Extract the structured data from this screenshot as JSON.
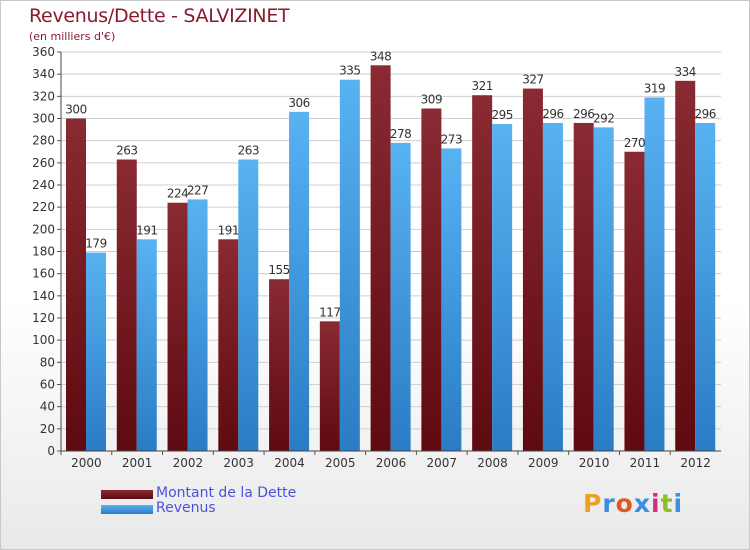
{
  "chart_data": {
    "type": "bar",
    "title": "Revenus/Dette - SALVIZINET",
    "subtitle": "(en milliers d'€)",
    "categories": [
      "2000",
      "2001",
      "2002",
      "2003",
      "2004",
      "2005",
      "2006",
      "2007",
      "2008",
      "2009",
      "2010",
      "2011",
      "2012"
    ],
    "series": [
      {
        "name": "Montant de la Dette",
        "color": "#7a1c22",
        "values": [
          300,
          263,
          224,
          191,
          155,
          117,
          348,
          309,
          321,
          327,
          296,
          270,
          334
        ]
      },
      {
        "name": "Revenus",
        "color": "#3d9ce6",
        "values": [
          179,
          191,
          227,
          263,
          306,
          335,
          278,
          273,
          295,
          296,
          292,
          319,
          296
        ]
      }
    ],
    "ylim": [
      0,
      360
    ],
    "yticks": [
      0,
      20,
      40,
      60,
      80,
      100,
      120,
      140,
      160,
      180,
      200,
      220,
      240,
      260,
      280,
      300,
      320,
      340,
      360
    ],
    "grid": true,
    "legend_position": "bottom-left"
  },
  "brand": {
    "letters": [
      "P",
      "r",
      "o",
      "x",
      "i",
      "t",
      "i"
    ],
    "colors": [
      "#f0a020",
      "#3c8ee0",
      "#e05a20",
      "#3c8ee0",
      "#d03080",
      "#8cbf2a",
      "#3c8ee0"
    ]
  }
}
